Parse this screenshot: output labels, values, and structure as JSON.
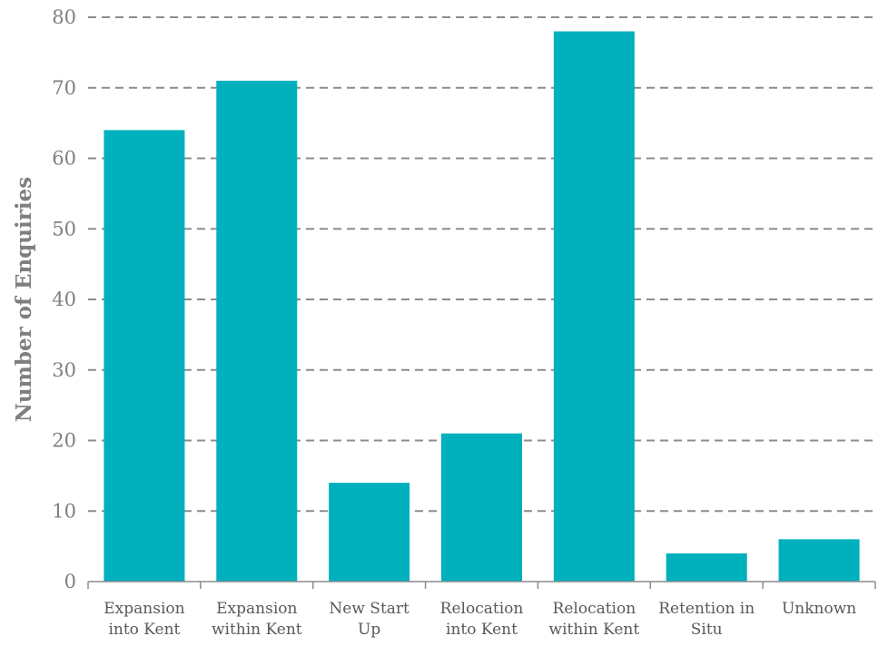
{
  "chart_data": {
    "type": "bar",
    "title": "",
    "xlabel": "",
    "ylabel": "Number of Enquiries",
    "categories": [
      [
        "Expansion",
        "into Kent"
      ],
      [
        "Expansion",
        "within Kent"
      ],
      [
        "New Start",
        "Up"
      ],
      [
        "Relocation",
        "into Kent"
      ],
      [
        "Relocation",
        "within Kent"
      ],
      [
        "Retention in",
        "Situ"
      ],
      [
        "Unknown"
      ]
    ],
    "values": [
      64,
      71,
      14,
      21,
      78,
      4,
      6
    ],
    "ylim": [
      0,
      80
    ],
    "yticks": [
      0,
      10,
      20,
      30,
      40,
      50,
      60,
      70,
      80
    ],
    "grid": true,
    "legend": "none",
    "bar_color": "#00b0bc"
  }
}
